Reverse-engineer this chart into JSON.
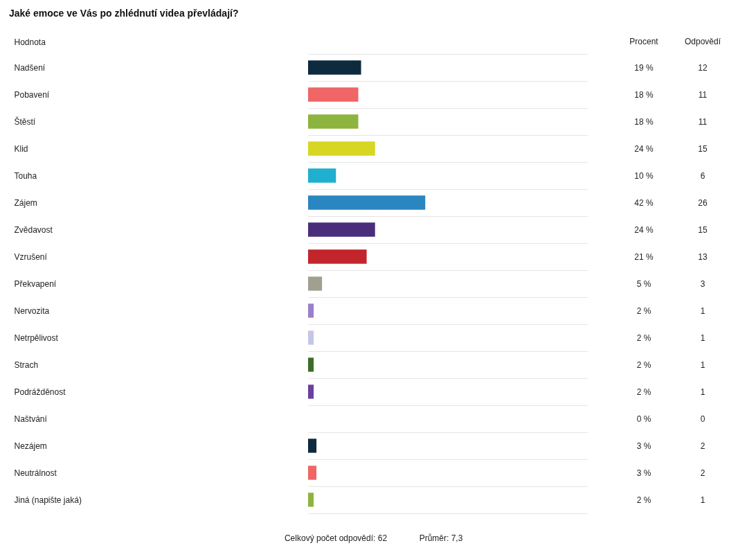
{
  "chart_data": {
    "type": "bar",
    "orientation": "horizontal",
    "title": "Jaké emoce ve Vás po zhlédnutí videa převládají?",
    "ylabel": "Hodnota",
    "categories": [
      "Nadšení",
      "Pobavení",
      "Štěstí",
      "Klid",
      "Touha",
      "Zájem",
      "Zvědavost",
      "Vzrušení",
      "Překvapení",
      "Nervozita",
      "Netrpělivost",
      "Strach",
      "Podrážděnost",
      "Naštvání",
      "Nezájem",
      "Neutrálnost",
      "Jiná (napište jaká)"
    ],
    "xlim": [
      0,
      100
    ],
    "grid": "y",
    "series": [
      {
        "colors": [
          "#0d2a3f",
          "#f06565",
          "#8db43f",
          "#d7d723",
          "#1fb0cf",
          "#2a86c0",
          "#4a2d7a",
          "#c2252c",
          "#a09f90",
          "#9b7fc8",
          "#c4c6e8",
          "#3e6b2a",
          "#6a3fa0",
          null,
          "#0d2a3f",
          "#f06565",
          "#8db43f"
        ],
        "values": [
          19,
          18,
          18,
          24,
          10,
          42,
          24,
          21,
          5,
          2,
          2,
          2,
          2,
          0,
          3,
          3,
          2
        ],
        "value_labels": [
          "19 %",
          "18 %",
          "18 %",
          "24 %",
          "10 %",
          "42 %",
          "24 %",
          "21 %",
          "5 %",
          "2 %",
          "2 %",
          "2 %",
          "2 %",
          "0 %",
          "3 %",
          "3 %",
          "2 %"
        ]
      }
    ],
    "annotations": [
      "Procent",
      "Odpovědí",
      "Celkový počet odpovědí: 62",
      "Průměr: 7,3",
      "12",
      "11",
      "11",
      "15",
      "6",
      "26",
      "15",
      "13",
      "3",
      "1",
      "1",
      "1",
      "1",
      "0",
      "2",
      "2",
      "1"
    ]
  }
}
